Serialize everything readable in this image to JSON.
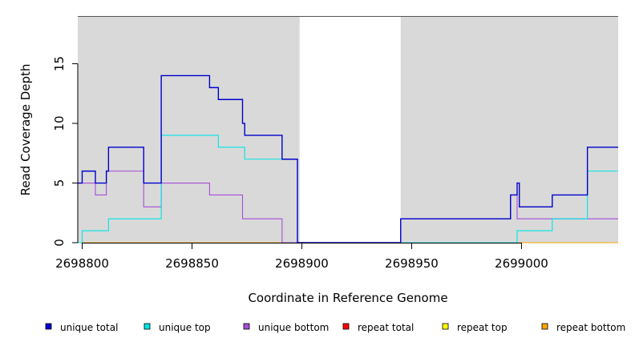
{
  "chart_data": {
    "type": "line",
    "line_shape": "step",
    "xlabel": "Coordinate in Reference Genome",
    "ylabel": "Read Coverage Depth",
    "xlim": [
      2698798,
      2699044
    ],
    "ylim": [
      0,
      19
    ],
    "x_ticks": [
      2698800,
      2698850,
      2698900,
      2698950,
      2699000
    ],
    "x_tick_labels": [
      "2698800",
      "2698850",
      "2698900",
      "2698950",
      "2699000"
    ],
    "y_ticks": [
      0,
      5,
      10,
      15
    ],
    "y_tick_labels": [
      "0",
      "5",
      "10",
      "15"
    ],
    "background_color": "#d9d9d9",
    "shaded_regions": [
      [
        2698798,
        2698899
      ],
      [
        2698945,
        2699044
      ]
    ],
    "legend_position": "bottom",
    "series": [
      {
        "name": "unique total",
        "color": "#0000cd",
        "points": [
          [
            2698798,
            5
          ],
          [
            2698800,
            6
          ],
          [
            2698806,
            5
          ],
          [
            2698811,
            6
          ],
          [
            2698812,
            8
          ],
          [
            2698828,
            5
          ],
          [
            2698836,
            14
          ],
          [
            2698858,
            13
          ],
          [
            2698862,
            12
          ],
          [
            2698873,
            10
          ],
          [
            2698874,
            9
          ],
          [
            2698891,
            7
          ],
          [
            2698898,
            0
          ],
          [
            2698945,
            2
          ],
          [
            2698995,
            4
          ],
          [
            2698998,
            5
          ],
          [
            2698999,
            3
          ],
          [
            2699014,
            4
          ],
          [
            2699030,
            8
          ],
          [
            2699044,
            8
          ]
        ]
      },
      {
        "name": "unique top",
        "color": "#00e5e5",
        "points": [
          [
            2698798,
            0
          ],
          [
            2698800,
            1
          ],
          [
            2698812,
            2
          ],
          [
            2698836,
            9
          ],
          [
            2698862,
            8
          ],
          [
            2698874,
            7
          ],
          [
            2698898,
            0
          ],
          [
            2698998,
            1
          ],
          [
            2699014,
            2
          ],
          [
            2699030,
            6
          ],
          [
            2699044,
            6
          ]
        ]
      },
      {
        "name": "unique bottom",
        "color": "#a64dd9",
        "points": [
          [
            2698798,
            5
          ],
          [
            2698806,
            4
          ],
          [
            2698811,
            6
          ],
          [
            2698828,
            3
          ],
          [
            2698836,
            5
          ],
          [
            2698858,
            4
          ],
          [
            2698873,
            2
          ],
          [
            2698891,
            0
          ],
          [
            2698945,
            2
          ],
          [
            2698995,
            4
          ],
          [
            2698998,
            2
          ],
          [
            2699044,
            2
          ]
        ]
      },
      {
        "name": "repeat total",
        "color": "#ff0000",
        "points": [
          [
            2698798,
            0
          ],
          [
            2699044,
            0
          ]
        ]
      },
      {
        "name": "repeat top",
        "color": "#ffff00",
        "points": [
          [
            2698798,
            0
          ],
          [
            2699044,
            0
          ]
        ]
      },
      {
        "name": "repeat bottom",
        "color": "#ffa500",
        "points": [
          [
            2698798,
            0
          ],
          [
            2699044,
            0
          ]
        ]
      }
    ]
  }
}
